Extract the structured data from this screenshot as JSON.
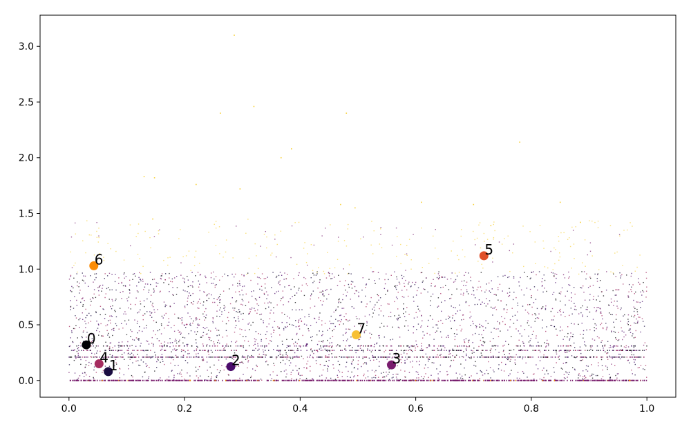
{
  "chart_data": {
    "type": "scatter",
    "title": "",
    "xlabel": "",
    "ylabel": "",
    "xlim": [
      -0.05,
      1.05
    ],
    "ylim": [
      -0.15,
      3.28
    ],
    "grid": false,
    "legend": "none",
    "x_ticks": [
      "0.0",
      "0.2",
      "0.4",
      "0.6",
      "0.8",
      "1.0"
    ],
    "y_ticks": [
      "0.0",
      "0.5",
      "1.0",
      "1.5",
      "2.0",
      "2.5",
      "3.0"
    ],
    "x_tick_values": [
      0.0,
      0.2,
      0.4,
      0.6,
      0.8,
      1.0
    ],
    "y_tick_values": [
      0.0,
      0.5,
      1.0,
      1.5,
      2.0,
      2.5,
      3.0
    ],
    "background_points": {
      "description_count": 4000,
      "x_range": [
        0.0,
        1.0
      ],
      "y_main_range": [
        0.0,
        1.0
      ],
      "y_bands": [
        0.0,
        0.21,
        0.27,
        0.31
      ],
      "outlier_y_max": 3.1
    },
    "palette": [
      "#000004",
      "#1b0c41",
      "#4a0c6b",
      "#781c6d",
      "#a52c60",
      "#cf4446",
      "#ed6925",
      "#fb9b06",
      "#f7d13d"
    ],
    "highlighted_points": [
      {
        "label": "0",
        "x": 0.03,
        "y": 0.32,
        "color": "#000004"
      },
      {
        "label": "1",
        "x": 0.068,
        "y": 0.08,
        "color": "#1b0c41"
      },
      {
        "label": "2",
        "x": 0.28,
        "y": 0.125,
        "color": "#4a0c6b"
      },
      {
        "label": "3",
        "x": 0.558,
        "y": 0.14,
        "color": "#781c6d"
      },
      {
        "label": "4",
        "x": 0.052,
        "y": 0.15,
        "color": "#a52c60"
      },
      {
        "label": "5",
        "x": 0.718,
        "y": 1.12,
        "color": "#e0502a"
      },
      {
        "label": "6",
        "x": 0.043,
        "y": 1.03,
        "color": "#fb8c06"
      },
      {
        "label": "7",
        "x": 0.497,
        "y": 0.41,
        "color": "#f7c034"
      }
    ]
  }
}
